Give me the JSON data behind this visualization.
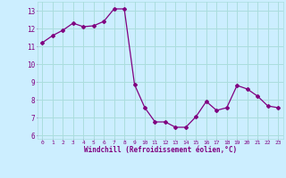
{
  "x": [
    0,
    1,
    2,
    3,
    4,
    5,
    6,
    7,
    8,
    9,
    10,
    11,
    12,
    13,
    14,
    15,
    16,
    17,
    18,
    19,
    20,
    21,
    22,
    23
  ],
  "y": [
    11.2,
    11.6,
    11.9,
    12.3,
    12.1,
    12.15,
    12.4,
    13.1,
    13.1,
    8.85,
    7.55,
    6.75,
    6.75,
    6.45,
    6.45,
    7.05,
    7.9,
    7.4,
    7.55,
    8.8,
    8.6,
    8.2,
    7.65,
    7.55
  ],
  "line_color": "#800080",
  "bg_color": "#cceeff",
  "grid_color": "#aadddd",
  "xlabel": "Windchill (Refroidissement éolien,°C)",
  "ylim": [
    5.8,
    13.5
  ],
  "xlim": [
    -0.5,
    23.5
  ],
  "yticks": [
    6,
    7,
    8,
    9,
    10,
    11,
    12,
    13
  ],
  "xticks": [
    0,
    1,
    2,
    3,
    4,
    5,
    6,
    7,
    8,
    9,
    10,
    11,
    12,
    13,
    14,
    15,
    16,
    17,
    18,
    19,
    20,
    21,
    22,
    23
  ],
  "label_color": "#800080",
  "tick_color": "#800080",
  "font_family": "monospace"
}
